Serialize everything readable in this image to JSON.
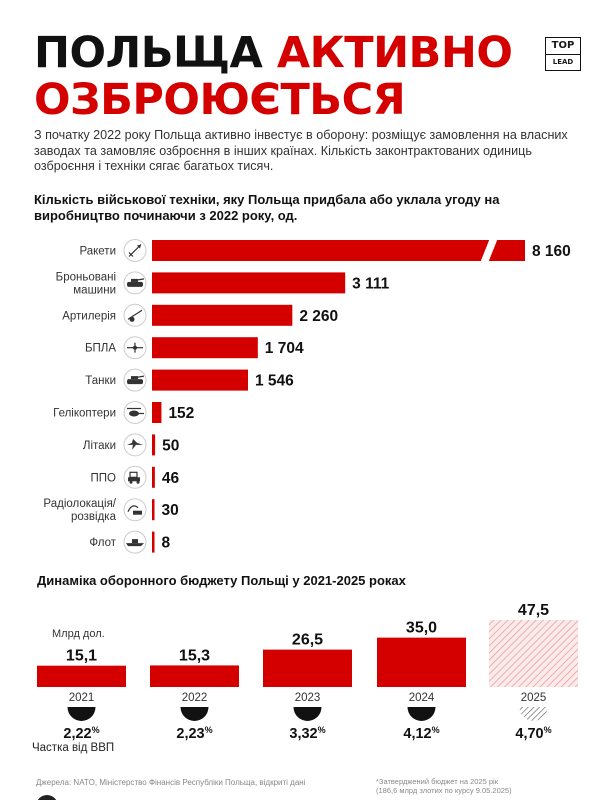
{
  "header": {
    "title_black": "ПОЛЬЩА",
    "title_red_1": "АКТИВНО",
    "title_red_2": "ОЗБРОЮЄТЬСЯ",
    "logo_top": "TOP",
    "logo_bottom": "LEAD",
    "intro": "З початку 2022 року Польща активно інвестує в оборону: розміщує замовлення на власних заводах та замовляє озброєння в інших країнах. Кількість законтрактованих одиниць озброєння і техніки сягає багатьох тисяч."
  },
  "colors": {
    "accent": "#d40000",
    "text": "#111111",
    "hatch": "#e8a0a0"
  },
  "chart_data": [
    {
      "type": "bar",
      "orientation": "horizontal",
      "title": "Кількість військової техніки, яку Польща придбала або уклала угоду на виробництво починаючи з 2022 року, од.",
      "categories": [
        "Ракети",
        "Броньовані машини",
        "Артилерія",
        "БПЛА",
        "Танки",
        "Гелікоптери",
        "Літаки",
        "ППО",
        "Радіолокація/ розвідка",
        "Флот"
      ],
      "category_lines": [
        [
          "Ракети"
        ],
        [
          "Броньовані",
          "машини"
        ],
        [
          "Артилерія"
        ],
        [
          "БПЛА"
        ],
        [
          "Танки"
        ],
        [
          "Гелікоптери"
        ],
        [
          "Літаки"
        ],
        [
          "ППО"
        ],
        [
          "Радіолокація/",
          "розвідка"
        ],
        [
          "Флот"
        ]
      ],
      "icons": [
        "missile-icon",
        "armored-vehicle-icon",
        "artillery-icon",
        "drone-icon",
        "tank-icon",
        "helicopter-icon",
        "plane-icon",
        "air-defense-icon",
        "radar-icon",
        "ship-icon"
      ],
      "values": [
        8160,
        3111,
        2260,
        1704,
        1546,
        152,
        50,
        46,
        30,
        8
      ],
      "value_labels": [
        "8 160",
        "3 111",
        "2 260",
        "1 704",
        "1 546",
        "152",
        "50",
        "46",
        "30",
        "8"
      ],
      "axis_break_on": "Ракети"
    },
    {
      "type": "bar",
      "title": "Динаміка оборонного бюджету Польщі у 2021-2025 роках",
      "ylabel": "Млрд дол.",
      "categories": [
        "2021",
        "2022",
        "2023",
        "2024",
        "2025"
      ],
      "values": [
        15.1,
        15.3,
        26.5,
        35.0,
        47.5
      ],
      "value_labels": [
        "15,1",
        "15,3",
        "26,5",
        "35,0",
        "47,5"
      ],
      "hatched": [
        false,
        false,
        false,
        false,
        true
      ],
      "gdp_share_label": "Частка від ВВП",
      "gdp_share": [
        2.22,
        2.23,
        3.32,
        4.12,
        4.7
      ],
      "gdp_share_labels": [
        "2,22",
        "2,23",
        "3,32",
        "4,12",
        "4,70"
      ],
      "percent_sign": "%"
    }
  ],
  "footer": {
    "sources": "Джерела: NATO, Міністерство Фінансів Республіки Польща, відкриті дані",
    "footnote_1": "*Затверджений бюджет на 2025 рік",
    "footnote_2": "(186,6 млрд злотих по курсу 9.05.2025)"
  }
}
